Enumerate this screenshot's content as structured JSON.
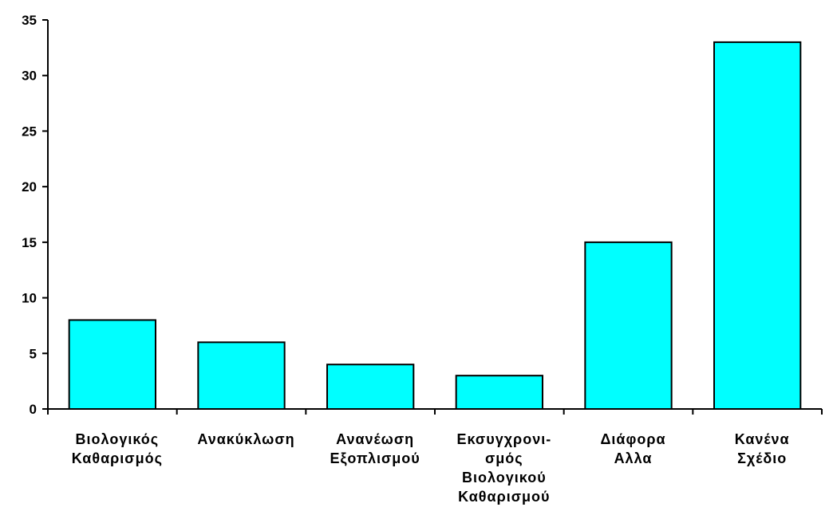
{
  "chart_data": {
    "type": "bar",
    "title": "",
    "xlabel": "",
    "ylabel": "",
    "categories": [
      [
        "Βιολογικός",
        "Καθαρισμός"
      ],
      [
        "Ανακύκλωση"
      ],
      [
        "Ανανέωση",
        "Εξοπλισμού"
      ],
      [
        "Εκσυγχρονι-",
        "σμός",
        "Βιολογικού",
        "Καθαρισμού"
      ],
      [
        "Διάφορα",
        "Αλλα"
      ],
      [
        "Κανένα",
        "Σχέδιο"
      ]
    ],
    "values": [
      8,
      6,
      4,
      3,
      15,
      33
    ],
    "ylim": [
      0,
      35
    ],
    "yticks": [
      0,
      5,
      10,
      15,
      20,
      25,
      30,
      35
    ],
    "grid": false,
    "legend": "none",
    "bar_color": "#00FFFF",
    "bar_edge_color": "#000000"
  }
}
